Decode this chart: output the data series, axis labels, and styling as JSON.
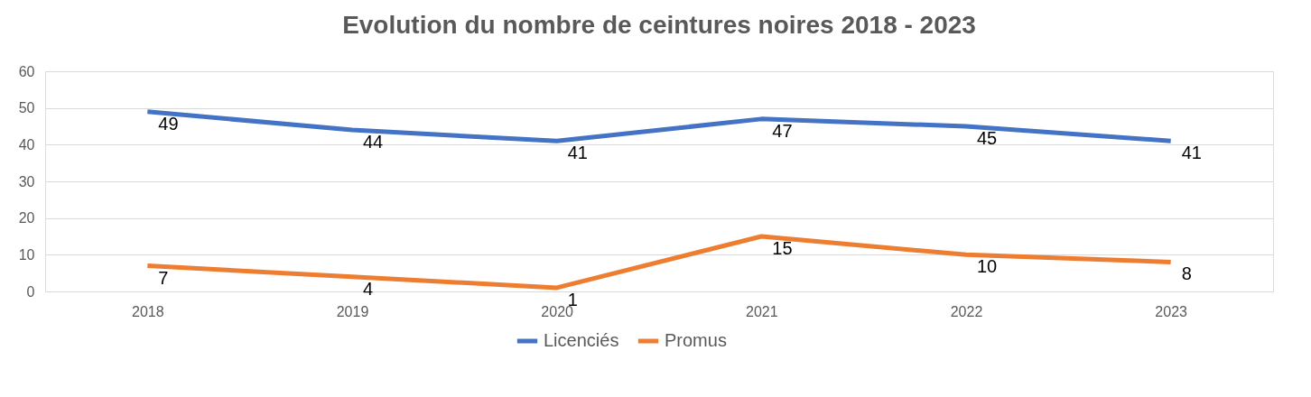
{
  "chart_data": {
    "type": "line",
    "title": "Evolution du nombre de ceintures noires 2018 - 2023",
    "categories": [
      "2018",
      "2019",
      "2020",
      "2021",
      "2022",
      "2023"
    ],
    "series": [
      {
        "name": "Licenciés",
        "color": "#4472c4",
        "values": [
          49,
          44,
          41,
          47,
          45,
          41
        ]
      },
      {
        "name": "Promus",
        "color": "#ed7d31",
        "values": [
          7,
          4,
          1,
          15,
          10,
          8
        ]
      }
    ],
    "ylim": [
      0,
      60
    ],
    "yticks": [
      0,
      10,
      20,
      30,
      40,
      50,
      60
    ],
    "grid": "y",
    "legend": "bottom",
    "data_labels": true,
    "marker": "none",
    "line_style": "solid"
  }
}
